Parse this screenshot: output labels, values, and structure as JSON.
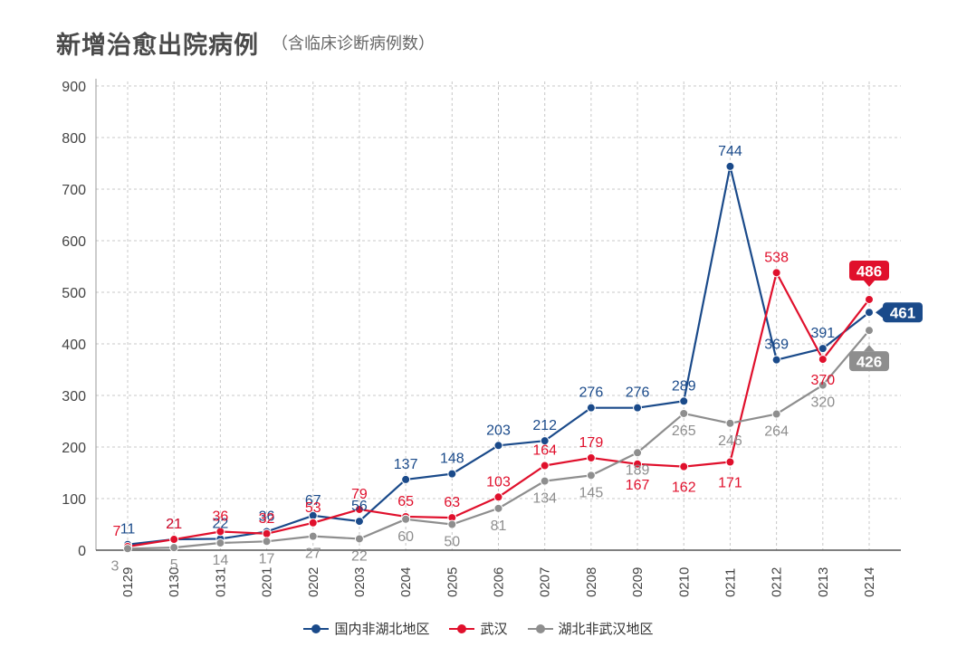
{
  "chart_data": {
    "type": "line",
    "title": "新增治愈出院病例",
    "subtitle": "（含临床诊断病例数）",
    "categories": [
      "0129",
      "0130",
      "0131",
      "0201",
      "0202",
      "0203",
      "0204",
      "0205",
      "0206",
      "0207",
      "0208",
      "0209",
      "0210",
      "0211",
      "0212",
      "0213",
      "0214"
    ],
    "yticks": [
      "0",
      "100",
      "200",
      "300",
      "400",
      "500",
      "600",
      "700",
      "800",
      "900"
    ],
    "ylim": [
      0,
      900
    ],
    "series": [
      {
        "name": "国内非湖北地区",
        "color": "#1a4a8a",
        "values": [
          11,
          21,
          22,
          36,
          67,
          56,
          137,
          148,
          203,
          212,
          276,
          276,
          289,
          744,
          369,
          391,
          461
        ]
      },
      {
        "name": "武汉",
        "color": "#e0102c",
        "values": [
          7,
          21,
          36,
          32,
          53,
          79,
          65,
          63,
          103,
          164,
          179,
          167,
          162,
          171,
          538,
          370,
          486
        ]
      },
      {
        "name": "湖北非武汉地区",
        "color": "#8e8e8e",
        "values": [
          3,
          5,
          14,
          17,
          27,
          22,
          60,
          50,
          81,
          134,
          145,
          189,
          265,
          246,
          264,
          320,
          426
        ]
      }
    ]
  }
}
